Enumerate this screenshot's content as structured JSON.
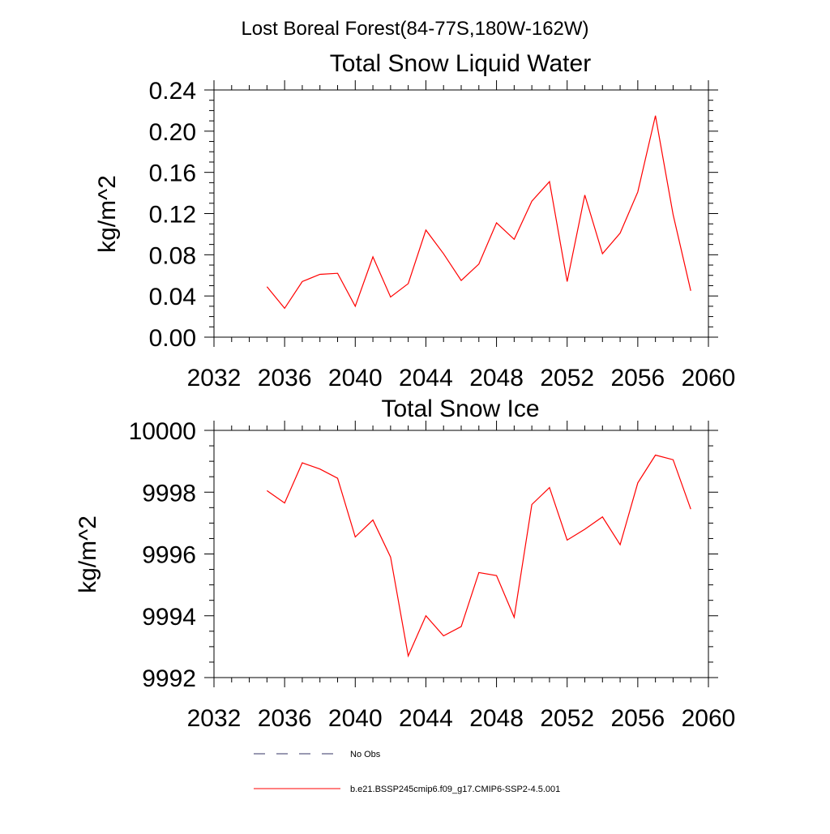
{
  "figure": {
    "title": "Lost Boreal Forest(84-77S,180W-162W)"
  },
  "chart_data": [
    {
      "type": "line",
      "title": "Total Snow Liquid Water",
      "xlabel": "",
      "ylabel": "kg/m^2",
      "xlim": [
        2032,
        2060
      ],
      "ylim": [
        0.0,
        0.24
      ],
      "xticks": [
        "2032",
        "2036",
        "2040",
        "2044",
        "2048",
        "2052",
        "2056",
        "2060"
      ],
      "yticks": [
        "0.00",
        "0.04",
        "0.08",
        "0.12",
        "0.16",
        "0.20",
        "0.24"
      ],
      "x": [
        2035,
        2036,
        2037,
        2038,
        2039,
        2040,
        2041,
        2042,
        2043,
        2044,
        2045,
        2046,
        2047,
        2048,
        2049,
        2050,
        2051,
        2052,
        2053,
        2054,
        2055,
        2056,
        2057,
        2058,
        2059
      ],
      "series": [
        {
          "name": "b.e21.BSSP245cmip6.f09_g17.CMIP6-SSP2-4.5.001",
          "color": "#ff0000",
          "values": [
            0.049,
            0.028,
            0.054,
            0.061,
            0.062,
            0.03,
            0.078,
            0.039,
            0.052,
            0.104,
            0.081,
            0.055,
            0.071,
            0.111,
            0.095,
            0.132,
            0.151,
            0.054,
            0.138,
            0.081,
            0.101,
            0.141,
            0.215,
            0.119,
            0.045
          ]
        }
      ]
    },
    {
      "type": "line",
      "title": "Total Snow Ice",
      "xlabel": "",
      "ylabel": "kg/m^2",
      "xlim": [
        2032,
        2060
      ],
      "ylim": [
        9992,
        10000
      ],
      "xticks": [
        "2032",
        "2036",
        "2040",
        "2044",
        "2048",
        "2052",
        "2056",
        "2060"
      ],
      "yticks": [
        "9992",
        "9994",
        "9996",
        "9998",
        "10000"
      ],
      "x": [
        2035,
        2036,
        2037,
        2038,
        2039,
        2040,
        2041,
        2042,
        2043,
        2044,
        2045,
        2046,
        2047,
        2048,
        2049,
        2050,
        2051,
        2052,
        2053,
        2054,
        2055,
        2056,
        2057,
        2058,
        2059
      ],
      "series": [
        {
          "name": "b.e21.BSSP245cmip6.f09_g17.CMIP6-SSP2-4.5.001",
          "color": "#ff0000",
          "values": [
            9998.05,
            9997.65,
            9998.95,
            9998.75,
            9998.45,
            9996.55,
            9997.1,
            9995.9,
            9992.7,
            9994.0,
            9993.35,
            9993.65,
            9995.4,
            9995.3,
            9993.95,
            9997.6,
            9998.15,
            9996.45,
            9996.8,
            9997.2,
            9996.3,
            9998.3,
            9999.2,
            9999.05,
            9997.45
          ]
        }
      ]
    }
  ],
  "legend": {
    "placement": "bottom",
    "entries": [
      {
        "label": "No Obs",
        "style": "dashed",
        "color": "#333366"
      },
      {
        "label": "b.e21.BSSP245cmip6.f09_g17.CMIP6-SSP2-4.5.001",
        "style": "solid",
        "color": "#ff0000"
      }
    ]
  }
}
